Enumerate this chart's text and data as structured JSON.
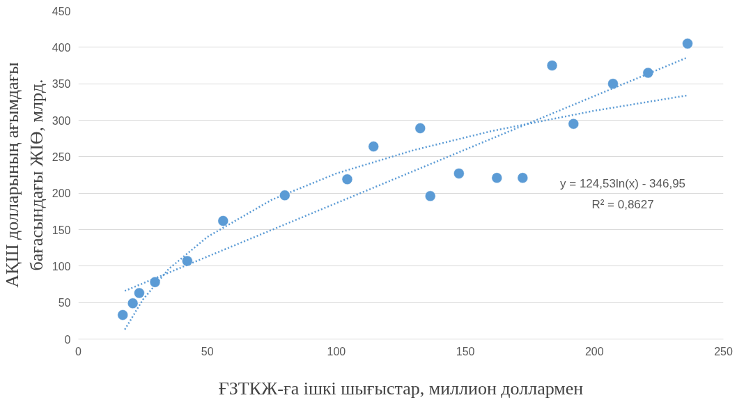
{
  "chart_data": {
    "type": "scatter",
    "xlabel": "ҒЗТКЖ-ға ішкі шығыстар, миллион доллармен",
    "ylabel": "АҚШ долларының ағымдағы\nбағасындағы ЖІӨ, млрд.",
    "x": [
      17.2,
      21.1,
      23.6,
      29.7,
      42.2,
      56.1,
      80,
      104.2,
      114.4,
      132.5,
      136.4,
      147.5,
      162.2,
      172.2,
      183.6,
      191.9,
      207.2,
      220.8,
      236.1
    ],
    "series": [
      {
        "color": "#5b9bd5",
        "marker": "circle",
        "values": [
          33,
          49,
          63,
          78,
          107,
          162,
          197,
          219,
          264,
          289,
          196,
          227,
          221,
          221,
          375,
          295,
          350,
          365,
          405
        ]
      },
      {
        "type": "line",
        "color": "#5b9bd5",
        "line_style": "dotted",
        "x": [
          18,
          25,
          35,
          50,
          75,
          100,
          130,
          160,
          200,
          236
        ],
        "values": [
          13,
          54,
          96,
          140,
          191,
          227,
          259,
          285,
          313,
          334
        ]
      },
      {
        "type": "line",
        "color": "#5b9bd5",
        "line_style": "dotted",
        "x": [
          18,
          236
        ],
        "values": [
          66,
          386
        ]
      }
    ],
    "annotations": [
      "y = 124,53ln(x) - 346,95",
      "R² = 0,8627"
    ],
    "xlim": [
      0,
      250
    ],
    "xticks": [
      0,
      50,
      100,
      150,
      200,
      250
    ],
    "ylim": [
      0,
      450
    ],
    "yticks": [
      0,
      50,
      100,
      150,
      200,
      250,
      300,
      350,
      400,
      450
    ],
    "grid": "y"
  }
}
